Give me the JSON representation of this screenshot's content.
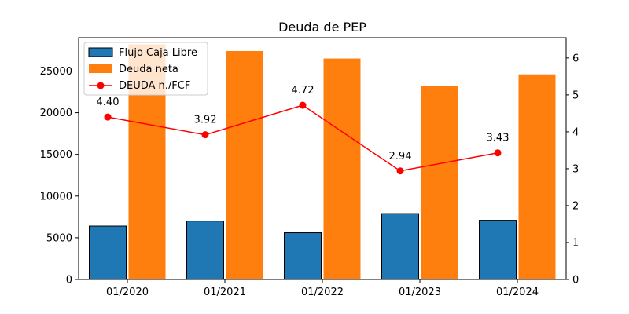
{
  "chart_data": {
    "type": "bar",
    "title": "Deuda de PEP",
    "categories": [
      "01/2020",
      "01/2021",
      "01/2022",
      "01/2023",
      "01/2024"
    ],
    "series": [
      {
        "name": "Flujo Caja Libre",
        "type": "bar",
        "axis": "left",
        "color": "#1f77b4",
        "values": [
          6400,
          7000,
          5600,
          7900,
          7100
        ]
      },
      {
        "name": "Deuda neta",
        "type": "bar",
        "axis": "left",
        "color": "#ff7f0e",
        "values": [
          28200,
          27400,
          26500,
          23200,
          24600
        ]
      },
      {
        "name": "DEUDA n./FCF",
        "type": "line",
        "axis": "right",
        "color": "#ff0000",
        "values": [
          4.4,
          3.92,
          4.72,
          2.94,
          3.43
        ]
      }
    ],
    "data_labels": [
      "4.40",
      "3.92",
      "4.72",
      "2.94",
      "3.43"
    ],
    "left_axis": {
      "ylim": [
        0,
        29000
      ],
      "ticks": [
        0,
        5000,
        10000,
        15000,
        20000,
        25000
      ]
    },
    "right_axis": {
      "ylim": [
        0,
        6.55
      ],
      "ticks": [
        0,
        1,
        2,
        3,
        4,
        5,
        6
      ]
    },
    "xlabel": "",
    "ylabel": "",
    "grid": false,
    "legend_position": "top-left"
  }
}
